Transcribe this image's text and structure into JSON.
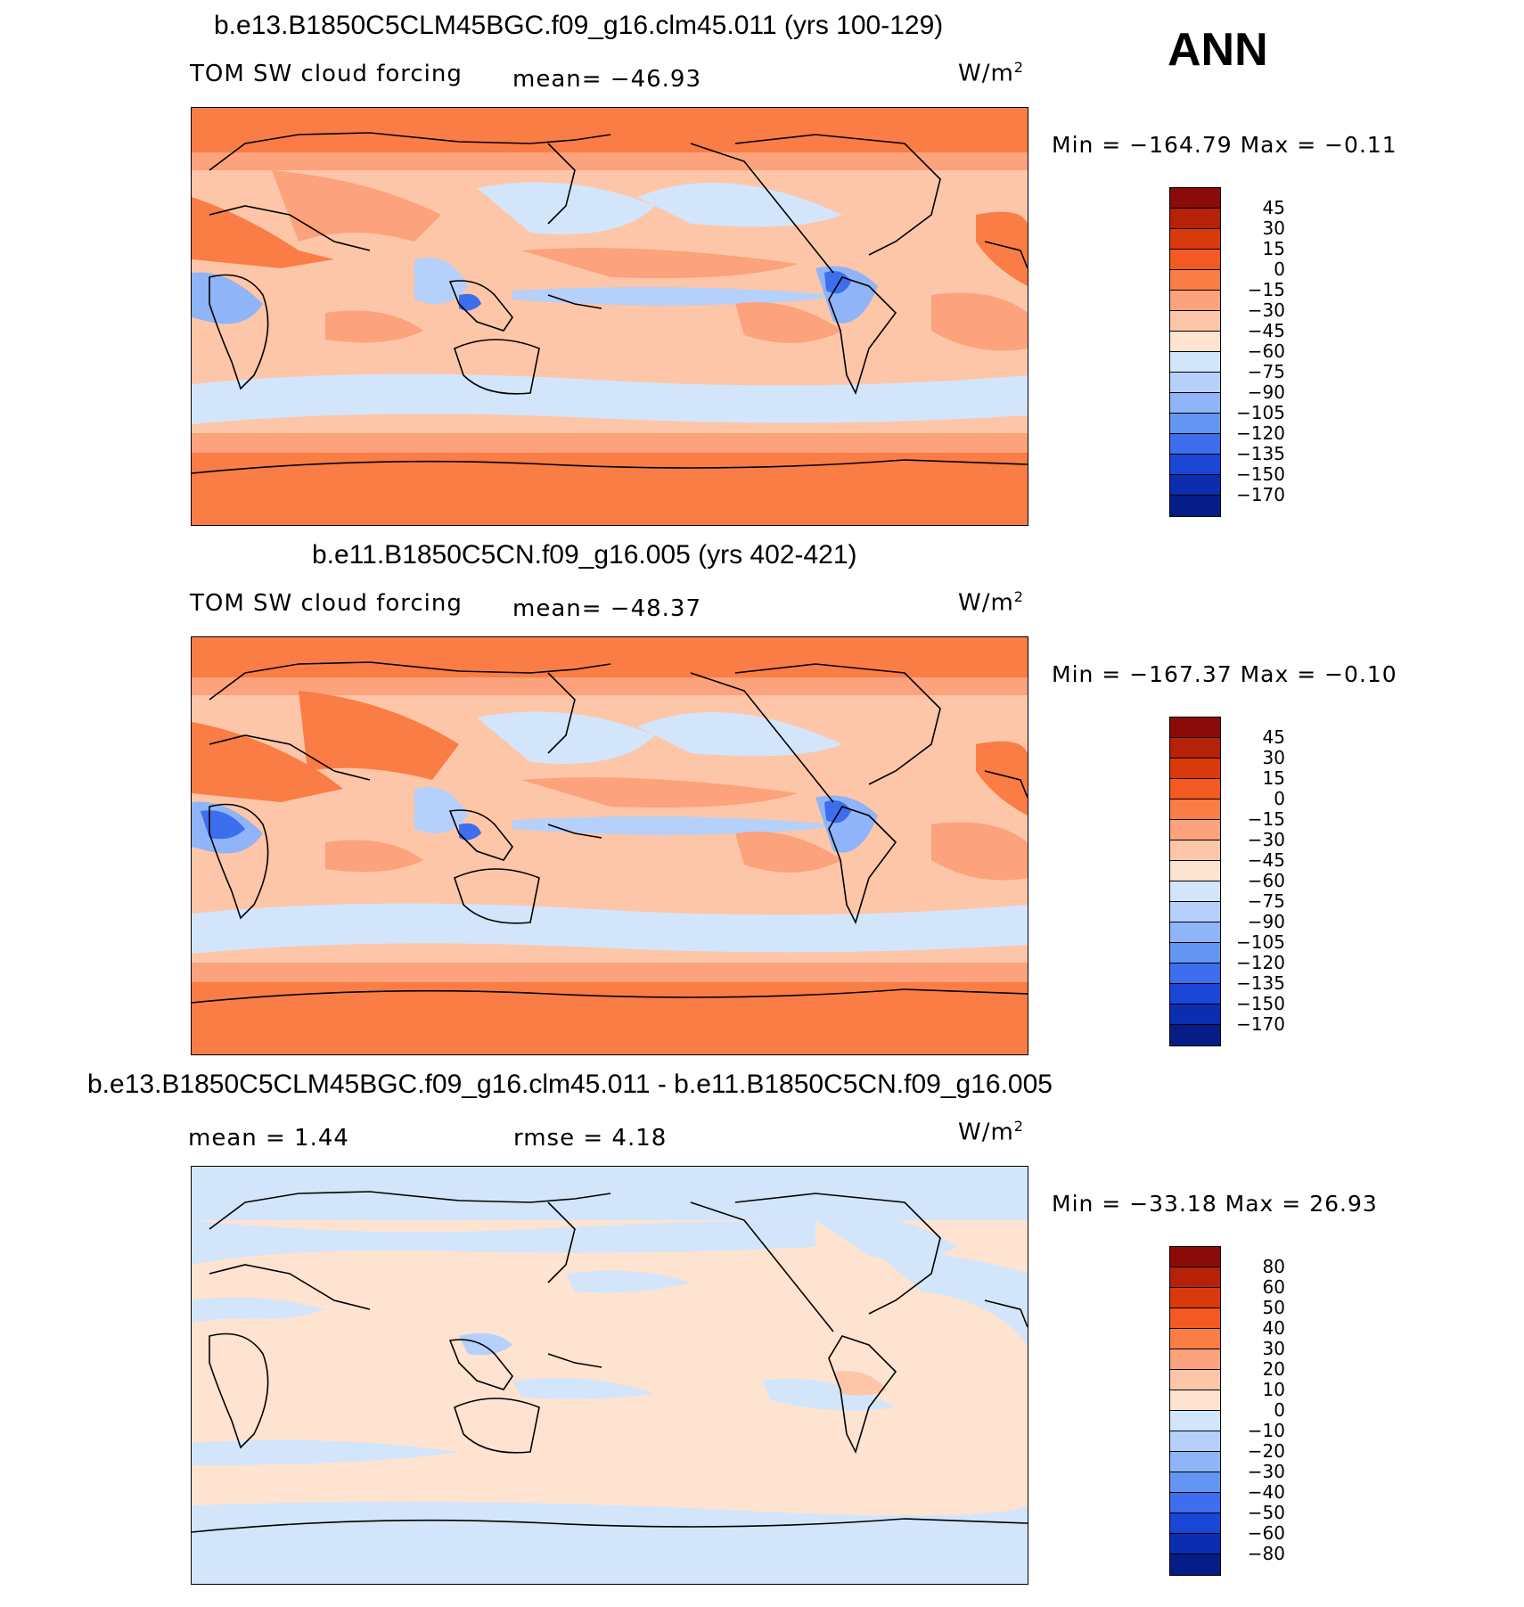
{
  "season": "ANN",
  "panels": [
    {
      "title": "b.e13.B1850C5CLM45BGC.f09_g16.clm45.011 (yrs 100-129)",
      "left_label": "TOM SW cloud forcing",
      "stat1": "mean= −46.93",
      "stat2": "",
      "units": "W/m",
      "units_sup": "2",
      "minmax": "Min  =  −164.79  Max  =    −0.11",
      "levels": [
        "45",
        "30",
        "15",
        "0",
        "−15",
        "−30",
        "−45",
        "−60",
        "−75",
        "−90",
        "−105",
        "−120",
        "−135",
        "−150",
        "−170"
      ],
      "colors": [
        "#8b0a0a",
        "#b52208",
        "#d93a0c",
        "#f25a22",
        "#fa7d45",
        "#fca27c",
        "#fdc6a8",
        "#fee3d0",
        "#d3e5fb",
        "#b5d0fa",
        "#8fb4f7",
        "#6495f3",
        "#3c6eed",
        "#1a46d8",
        "#0c2db0",
        "#061c86"
      ]
    },
    {
      "title": "b.e11.B1850C5CN.f09_g16.005 (yrs 402-421)",
      "left_label": "TOM SW cloud forcing",
      "stat1": "mean= −48.37",
      "stat2": "",
      "units": "W/m",
      "units_sup": "2",
      "minmax": "Min  =  −167.37  Max  =    −0.10",
      "levels": [
        "45",
        "30",
        "15",
        "0",
        "−15",
        "−30",
        "−45",
        "−60",
        "−75",
        "−90",
        "−105",
        "−120",
        "−135",
        "−150",
        "−170"
      ],
      "colors": [
        "#8b0a0a",
        "#b52208",
        "#d93a0c",
        "#f25a22",
        "#fa7d45",
        "#fca27c",
        "#fdc6a8",
        "#fee3d0",
        "#d3e5fb",
        "#b5d0fa",
        "#8fb4f7",
        "#6495f3",
        "#3c6eed",
        "#1a46d8",
        "#0c2db0",
        "#061c86"
      ]
    },
    {
      "title": "b.e13.B1850C5CLM45BGC.f09_g16.clm45.011 - b.e11.B1850C5CN.f09_g16.005",
      "left_label": "mean  =      1.44",
      "stat1": "rmse  =      4.18",
      "stat2": "",
      "units": "W/m",
      "units_sup": "2",
      "minmax": "Min  =  −33.18  Max  =    26.93",
      "levels": [
        "80",
        "60",
        "50",
        "40",
        "30",
        "20",
        "10",
        "0",
        "−10",
        "−20",
        "−30",
        "−40",
        "−50",
        "−60",
        "−80"
      ],
      "colors": [
        "#8b0a0a",
        "#b52208",
        "#d93a0c",
        "#f25a22",
        "#fa7d45",
        "#fca27c",
        "#fdc6a8",
        "#fee3d0",
        "#d3e5fb",
        "#b5d0fa",
        "#8fb4f7",
        "#6495f3",
        "#3c6eed",
        "#1a46d8",
        "#0c2db0",
        "#061c86"
      ]
    }
  ]
}
